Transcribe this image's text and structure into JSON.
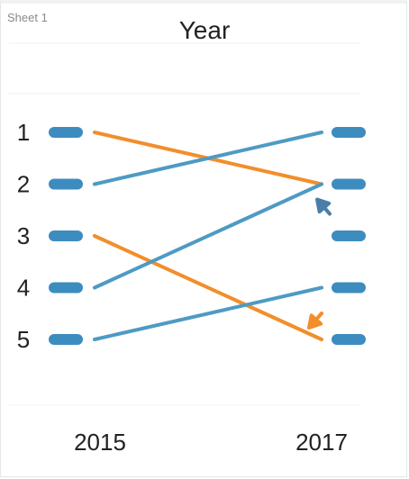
{
  "sheet": {
    "title": "Sheet 1"
  },
  "chart_data": {
    "type": "line",
    "title": "Year",
    "x": [
      "2015",
      "2017"
    ],
    "rank_labels": [
      "1",
      "2",
      "3",
      "4",
      "5"
    ],
    "rank_slots": [
      1,
      2,
      3,
      4,
      5
    ],
    "series": [
      {
        "values": [
          1,
          2
        ],
        "color": "#f28e2b"
      },
      {
        "values": [
          2,
          1
        ],
        "color": "#4e9ac4"
      },
      {
        "values": [
          3,
          5
        ],
        "color": "#f28e2b"
      },
      {
        "values": [
          4,
          2
        ],
        "color": "#4e9ac4"
      },
      {
        "values": [
          5,
          4
        ],
        "color": "#4e9ac4"
      }
    ],
    "annotations": [
      {
        "type": "arrow",
        "x": "2017",
        "y": 2,
        "color": "#4a7ea8"
      },
      {
        "type": "arrow",
        "x": "2017",
        "y": 5,
        "color": "#f28e2b"
      }
    ],
    "marker_color": "#3d8cbf",
    "ylim": [
      1,
      5
    ],
    "grid": false,
    "legend": "none"
  }
}
